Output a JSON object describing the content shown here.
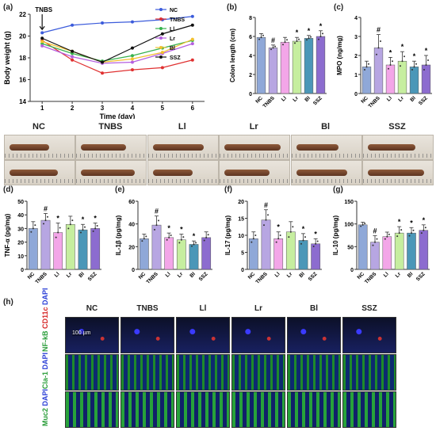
{
  "panel_labels": [
    "(a)",
    "(b)",
    "(c)",
    "(d)",
    "(e)",
    "(f)",
    "(g)",
    "(h)"
  ],
  "groups": [
    "NC",
    "TNBS",
    "Ll",
    "Lr",
    "Bl",
    "SSZ"
  ],
  "group_colors": [
    "#3b5bdb",
    "#e03131",
    "#37b24d",
    "#b45fe0",
    "#f2c12e",
    "#111111"
  ],
  "bar_colors": [
    "#8fa8d8",
    "#b7a6e2",
    "#f3a6e8",
    "#c6ee9f",
    "#4b97b8",
    "#8c6ccf"
  ],
  "chart_data": [
    {
      "id": "a",
      "type": "line",
      "annotation": "TNBS",
      "x": [
        1,
        2,
        3,
        4,
        5,
        6
      ],
      "xlabel": "Time (day)",
      "ylabel": "Body weight (g)",
      "ylim": [
        14,
        22
      ],
      "xticks": [
        1,
        2,
        3,
        4,
        5,
        6
      ],
      "yticks": [
        14,
        16,
        18,
        20,
        22
      ],
      "series": [
        {
          "name": "NC",
          "values": [
            20.3,
            21.0,
            21.2,
            21.3,
            21.5,
            21.8
          ]
        },
        {
          "name": "TNBS",
          "values": [
            19.6,
            17.8,
            16.6,
            16.9,
            17.1,
            17.8
          ]
        },
        {
          "name": "Ll",
          "values": [
            19.3,
            18.4,
            17.7,
            18.2,
            18.9,
            19.6
          ]
        },
        {
          "name": "Lr",
          "values": [
            19.1,
            18.1,
            17.5,
            17.6,
            18.4,
            19.3
          ]
        },
        {
          "name": "Bl",
          "values": [
            19.5,
            18.6,
            17.6,
            17.9,
            18.5,
            19.7
          ]
        },
        {
          "name": "SSZ",
          "values": [
            19.8,
            18.6,
            17.6,
            18.9,
            20.2,
            21.0
          ]
        }
      ]
    },
    {
      "id": "b",
      "type": "bar",
      "ylabel": "Colon length (cm)",
      "ylim": [
        0,
        8
      ],
      "yticks": [
        0,
        2,
        4,
        6,
        8
      ],
      "categories": [
        "NC",
        "TNBS",
        "Ll",
        "Lr",
        "Bl",
        "SSZ"
      ],
      "values": [
        5.9,
        4.8,
        5.4,
        5.5,
        5.8,
        6.0
      ],
      "errors": [
        0.4,
        0.3,
        0.5,
        0.4,
        0.3,
        0.6
      ],
      "marks": [
        "",
        "#",
        "",
        "*",
        "*",
        "*"
      ]
    },
    {
      "id": "c",
      "type": "bar",
      "ylabel": "MPO (ng/mg)",
      "ylim": [
        0,
        4
      ],
      "yticks": [
        0,
        1,
        2,
        3,
        4
      ],
      "categories": [
        "NC",
        "TNBS",
        "Ll",
        "Lr",
        "Bl",
        "SSZ"
      ],
      "values": [
        1.4,
        2.4,
        1.5,
        1.7,
        1.4,
        1.5
      ],
      "errors": [
        0.3,
        0.7,
        0.4,
        0.5,
        0.3,
        0.5
      ],
      "marks": [
        "",
        "#",
        "*",
        "*",
        "*",
        "*"
      ]
    },
    {
      "id": "d",
      "type": "bar",
      "ylabel": "TNF-α (pg/mg)",
      "ylim": [
        0,
        50
      ],
      "yticks": [
        0,
        10,
        20,
        30,
        40,
        50
      ],
      "categories": [
        "NC",
        "TNBS",
        "Ll",
        "Lr",
        "Bl",
        "SSZ"
      ],
      "values": [
        30,
        36,
        27,
        33,
        29,
        30
      ],
      "errors": [
        5,
        5,
        7,
        6,
        4,
        4
      ],
      "marks": [
        "",
        "#",
        "*",
        "",
        "*",
        "*"
      ]
    },
    {
      "id": "e",
      "type": "bar",
      "ylabel": "IL-1β (pg/mg)",
      "ylim": [
        0,
        60
      ],
      "yticks": [
        0,
        20,
        40,
        60
      ],
      "categories": [
        "NC",
        "TNBS",
        "Ll",
        "Lr",
        "Bl",
        "SSZ"
      ],
      "values": [
        27,
        39,
        28,
        26,
        22,
        28
      ],
      "errors": [
        4,
        8,
        4,
        5,
        3,
        5
      ],
      "marks": [
        "",
        "#",
        "*",
        "*",
        "*",
        ""
      ]
    },
    {
      "id": "f",
      "type": "bar",
      "ylabel": "IL-17 (pg/mg)",
      "ylim": [
        0,
        20
      ],
      "yticks": [
        0,
        5,
        10,
        15,
        20
      ],
      "categories": [
        "NC",
        "TNBS",
        "Ll",
        "Lr",
        "Bl",
        "SSZ"
      ],
      "values": [
        9,
        14.5,
        9,
        11,
        8.5,
        7.5
      ],
      "errors": [
        2,
        3,
        2,
        3,
        2,
        1.5
      ],
      "marks": [
        "",
        "#",
        "*",
        "",
        "*",
        "*"
      ]
    },
    {
      "id": "g",
      "type": "bar",
      "ylabel": "IL-10 (pg/mg)",
      "ylim": [
        0,
        150
      ],
      "yticks": [
        0,
        50,
        100,
        150
      ],
      "categories": [
        "NC",
        "TNBS",
        "Ll",
        "Lr",
        "Bl",
        "SSZ"
      ],
      "values": [
        98,
        60,
        72,
        80,
        80,
        86
      ],
      "errors": [
        6,
        14,
        10,
        14,
        12,
        12
      ],
      "marks": [
        "",
        "#",
        "",
        "*",
        "*",
        "*"
      ]
    }
  ],
  "photo_titles": [
    "NC",
    "TNBS",
    "Ll",
    "Lr",
    "Bl",
    "SSZ"
  ],
  "micro_titles": [
    "NC",
    "TNBS",
    "Ll",
    "Lr",
    "Bl",
    "SSZ"
  ],
  "micro_rows": [
    {
      "l1": "NF-kB",
      "l1c": "#2a9d3a",
      "l2": "CD11c",
      "l2c": "#d62828",
      "l3": "DAPI",
      "l3c": "#2b3fd6"
    },
    {
      "l1": "Cla-1",
      "l1c": "#2a9d3a",
      "l2": "DAPI",
      "l2c": "#2b3fd6"
    },
    {
      "l1": "Muc2",
      "l1c": "#2a9d3a",
      "l2": "DAPI",
      "l2c": "#2b3fd6"
    }
  ],
  "scale_bar": "100 µm"
}
